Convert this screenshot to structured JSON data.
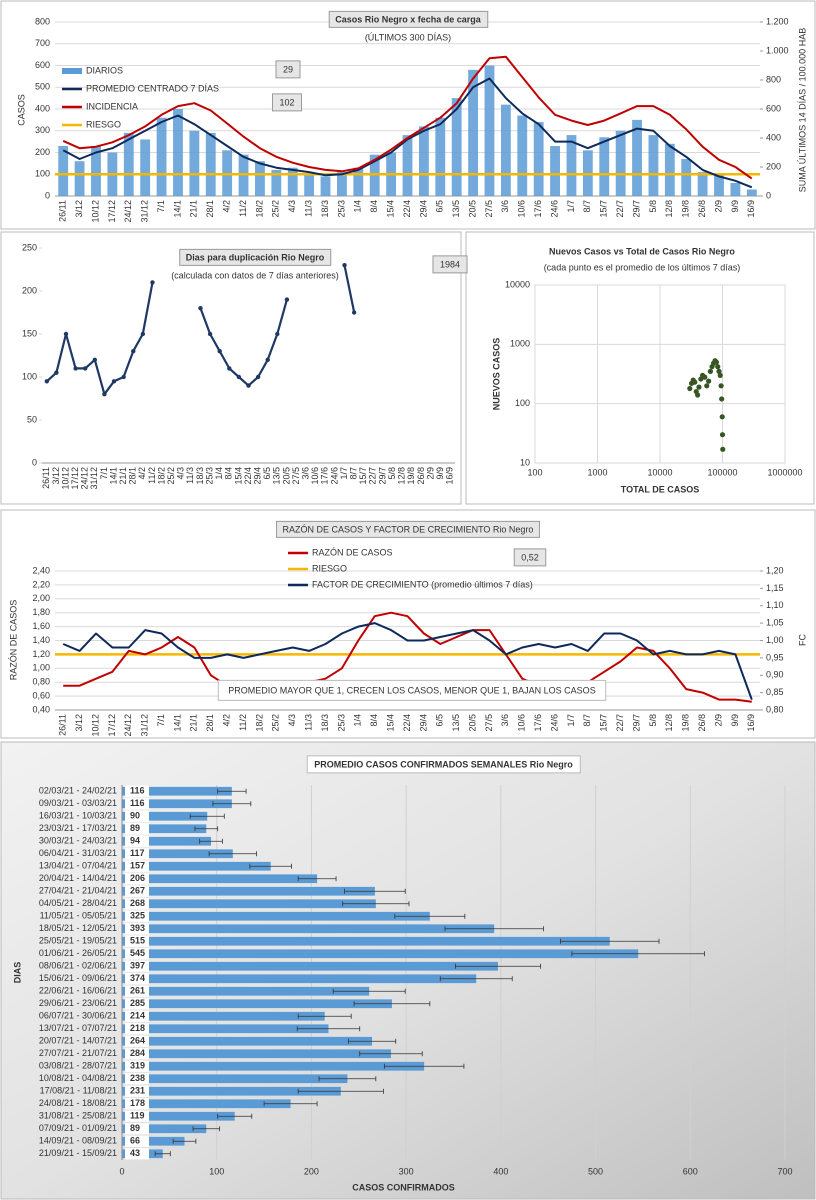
{
  "chart_data": [
    {
      "type": "bar",
      "title": "Casos Rio Negro x fecha de carga",
      "subtitle": "(ÚLTIMOS 300 DÍAS)",
      "ylabel": "CASOS",
      "y2label": "SUMA ÚLTIMOS 14 DÍAS / 100.000 HAB",
      "grid": true,
      "categories": [
        "26/11",
        "3/12",
        "10/12",
        "17/12",
        "24/12",
        "31/12",
        "7/1",
        "14/1",
        "21/1",
        "28/1",
        "4/2",
        "11/2",
        "18/2",
        "25/2",
        "4/3",
        "11/3",
        "18/3",
        "25/3",
        "1/4",
        "8/4",
        "15/4",
        "22/4",
        "29/4",
        "6/5",
        "13/5",
        "20/5",
        "27/5",
        "3/6",
        "10/6",
        "17/6",
        "24/6",
        "1/7",
        "8/7",
        "15/7",
        "22/7",
        "29/7",
        "5/8",
        "12/8",
        "19/8",
        "26/8",
        "2/9",
        "9/9",
        "16/9"
      ],
      "series": [
        {
          "name": "DIARIOS",
          "type": "bar",
          "color": "#5b9bd5",
          "values": [
            230,
            160,
            230,
            200,
            290,
            260,
            360,
            400,
            300,
            290,
            210,
            190,
            160,
            120,
            130,
            100,
            90,
            110,
            130,
            190,
            200,
            280,
            320,
            360,
            450,
            580,
            600,
            420,
            370,
            340,
            230,
            280,
            210,
            270,
            300,
            350,
            280,
            240,
            170,
            110,
            100,
            60,
            30
          ]
        },
        {
          "name": "PROMEDIO CENTRADO 7 DÍAS",
          "type": "line",
          "color": "#0e2a5c",
          "values": [
            210,
            170,
            200,
            220,
            260,
            300,
            340,
            370,
            330,
            280,
            230,
            180,
            150,
            130,
            120,
            110,
            95,
            100,
            120,
            160,
            200,
            260,
            300,
            330,
            400,
            500,
            540,
            450,
            380,
            330,
            250,
            250,
            220,
            250,
            280,
            310,
            300,
            230,
            180,
            120,
            90,
            70,
            40
          ]
        },
        {
          "name": "INCIDENCIA",
          "type": "line",
          "axis": "y2",
          "color": "#c00000",
          "values": [
            380,
            330,
            340,
            370,
            420,
            480,
            560,
            620,
            640,
            590,
            500,
            410,
            330,
            270,
            230,
            200,
            180,
            170,
            190,
            250,
            320,
            400,
            470,
            540,
            640,
            810,
            950,
            960,
            820,
            680,
            560,
            520,
            490,
            520,
            570,
            620,
            620,
            560,
            460,
            340,
            250,
            200,
            120
          ]
        }
      ],
      "reference_lines": [
        {
          "name": "RIESGO",
          "value": 100,
          "color": "#f5b800"
        }
      ],
      "annotations": [
        "29",
        "102"
      ],
      "ylim": [
        0,
        800
      ],
      "yticks": [
        0,
        100,
        200,
        300,
        400,
        500,
        600,
        700,
        800
      ],
      "y2lim": [
        0,
        1200
      ],
      "y2ticks": [
        0,
        200,
        400,
        600,
        800,
        {
          "value": 1000,
          "label": "1.000"
        },
        {
          "value": 1200,
          "label": "1.200"
        }
      ]
    },
    {
      "type": "line",
      "title": "Dias para duplicación Rio Negro",
      "subtitle": "(calculada con datos de 7 días anteriores)",
      "grid": false,
      "categories": [
        "26/11",
        "3/12",
        "10/12",
        "17/12",
        "24/12",
        "31/12",
        "7/1",
        "14/1",
        "21/1",
        "28/1",
        "4/2",
        "11/2",
        "18/2",
        "25/2",
        "4/3",
        "11/3",
        "18/3",
        "25/3",
        "1/4",
        "8/4",
        "15/4",
        "22/4",
        "29/4",
        "6/5",
        "13/5",
        "20/5",
        "27/5",
        "3/6",
        "10/6",
        "17/6",
        "24/6",
        "1/7",
        "8/7",
        "15/7",
        "22/7",
        "29/7",
        "5/8",
        "12/8",
        "19/8",
        "26/8",
        "2/9",
        "9/9",
        "16/9"
      ],
      "series": [
        {
          "name": "DIAS",
          "type": "line",
          "color": "#1f3864",
          "values": [
            95,
            105,
            150,
            110,
            110,
            120,
            80,
            95,
            100,
            130,
            150,
            210,
            null,
            null,
            null,
            null,
            180,
            150,
            130,
            110,
            100,
            90,
            100,
            120,
            150,
            190,
            null,
            null,
            null,
            null,
            null,
            230,
            175,
            null,
            null,
            null,
            null,
            null,
            null,
            null,
            null,
            null,
            null
          ]
        }
      ],
      "annotations": [
        "1984"
      ],
      "ylim": [
        0,
        250
      ],
      "yticks": [
        0,
        50,
        100,
        150,
        200,
        250
      ]
    },
    {
      "type": "scatter",
      "title": "Nuevos Casos vs Total de Casos Rio Negro",
      "subtitle": "(cada punto es el promedio de los últimos 7 días)",
      "xlabel": "TOTAL DE CASOS",
      "ylabel": "NUEVOS CASOS",
      "grid": true,
      "log_scale": true,
      "color": "#375623",
      "x": [
        30000,
        32000,
        34000,
        36000,
        38000,
        40000,
        42000,
        45000,
        48000,
        52000,
        56000,
        60000,
        64000,
        68000,
        72000,
        76000,
        80000,
        84000,
        88000,
        92000,
        95000,
        97000,
        99000,
        100000,
        101000
      ],
      "y": [
        180,
        220,
        250,
        230,
        160,
        140,
        190,
        260,
        300,
        280,
        200,
        240,
        350,
        420,
        480,
        530,
        500,
        420,
        350,
        300,
        200,
        120,
        60,
        30,
        17
      ],
      "xlim": [
        100,
        1000000
      ],
      "xticks": [
        100,
        1000,
        10000,
        100000,
        1000000
      ],
      "ylim": [
        10,
        10000
      ],
      "yticks": [
        10,
        100,
        1000,
        10000
      ]
    },
    {
      "type": "line",
      "title": "RAZÓN DE CASOS Y FACTOR DE CRECIMIENTO Rio Negro",
      "ylabel": "RAZÓN DE CASOS",
      "y2label": "FC",
      "grid": true,
      "note": "PROMEDIO MAYOR QUE 1, CRECEN LOS CASOS, MENOR QUE 1, BAJAN LOS CASOS",
      "annotations": [
        "0,52"
      ],
      "categories": [
        "26/11",
        "3/12",
        "10/12",
        "17/12",
        "24/12",
        "31/12",
        "7/1",
        "14/1",
        "21/1",
        "28/1",
        "4/2",
        "11/2",
        "18/2",
        "25/2",
        "4/3",
        "11/3",
        "18/3",
        "25/3",
        "1/4",
        "8/4",
        "15/4",
        "22/4",
        "29/4",
        "6/5",
        "13/5",
        "20/5",
        "27/5",
        "3/6",
        "10/6",
        "17/6",
        "24/6",
        "1/7",
        "8/7",
        "15/7",
        "22/7",
        "29/7",
        "5/8",
        "12/8",
        "19/8",
        "26/8",
        "2/9",
        "9/9",
        "16/9"
      ],
      "series": [
        {
          "name": "RAZÓN DE CASOS",
          "type": "line",
          "color": "#c00000",
          "values": [
            0.75,
            0.75,
            0.85,
            0.95,
            1.25,
            1.2,
            1.3,
            1.45,
            1.3,
            0.9,
            0.75,
            0.65,
            0.6,
            0.65,
            0.75,
            0.8,
            0.85,
            1.0,
            1.4,
            1.75,
            1.8,
            1.75,
            1.5,
            1.35,
            1.45,
            1.55,
            1.55,
            1.2,
            0.85,
            0.75,
            0.75,
            0.8,
            0.8,
            0.95,
            1.1,
            1.3,
            1.25,
            1.0,
            0.7,
            0.65,
            0.55,
            0.55,
            0.52
          ]
        },
        {
          "name": "FACTOR DE CRECIMIENTO (promedio últimos 7 días)",
          "type": "line",
          "axis": "y2",
          "color": "#0e2a5c",
          "values": [
            0.99,
            0.97,
            1.02,
            0.98,
            0.98,
            1.03,
            1.02,
            0.98,
            0.95,
            0.95,
            0.96,
            0.95,
            0.96,
            0.97,
            0.98,
            0.97,
            0.99,
            1.02,
            1.04,
            1.05,
            1.03,
            1.0,
            1.0,
            1.01,
            1.02,
            1.03,
            1.0,
            0.96,
            0.98,
            0.99,
            0.98,
            0.99,
            0.97,
            1.02,
            1.02,
            1.0,
            0.96,
            0.97,
            0.96,
            0.96,
            0.97,
            0.96,
            0.83
          ]
        }
      ],
      "reference_lines": [
        {
          "name": "RIESGO",
          "value": 1.2,
          "color": "#f5b800"
        }
      ],
      "ylim": [
        0.4,
        2.4
      ],
      "yticks": [
        {
          "value": 0.4,
          "label": "0,40"
        },
        {
          "value": 0.6,
          "label": "0,60"
        },
        {
          "value": 0.8,
          "label": "0,80"
        },
        {
          "value": 1.0,
          "label": "1,00"
        },
        {
          "value": 1.2,
          "label": "1,20"
        },
        {
          "value": 1.4,
          "label": "1,40"
        },
        {
          "value": 1.6,
          "label": "1,60"
        },
        {
          "value": 1.8,
          "label": "1,80"
        },
        {
          "value": 2.0,
          "label": "2,00"
        },
        {
          "value": 2.2,
          "label": "2,20"
        },
        {
          "value": 2.4,
          "label": "2,40"
        }
      ],
      "y2lim": [
        0.8,
        1.2
      ],
      "y2ticks": [
        {
          "value": 0.8,
          "label": "0,80"
        },
        {
          "value": 0.85,
          "label": "0,85"
        },
        {
          "value": 0.9,
          "label": "0,90"
        },
        {
          "value": 0.95,
          "label": "0,95"
        },
        {
          "value": 1.0,
          "label": "1,00"
        },
        {
          "value": 1.05,
          "label": "1,05"
        },
        {
          "value": 1.1,
          "label": "1,10"
        },
        {
          "value": 1.15,
          "label": "1,15"
        },
        {
          "value": 1.2,
          "label": "1,20"
        }
      ]
    },
    {
      "type": "hbar",
      "title": "PROMEDIO CASOS CONFIRMADOS SEMANALES Rio Negro",
      "xlabel": "CASOS CONFIRMADOS",
      "ylabel": "DIAS",
      "grid": true,
      "color": "#5b9bd5",
      "categories": [
        "02/03/21 - 24/02/21",
        "09/03/21 - 03/03/21",
        "16/03/21 - 10/03/21",
        "23/03/21 - 17/03/21",
        "30/03/21 - 24/03/21",
        "06/04/21 - 31/03/21",
        "13/04/21 - 07/04/21",
        "20/04/21 - 14/04/21",
        "27/04/21 - 21/04/21",
        "04/05/21 - 28/04/21",
        "11/05/21 - 05/05/21",
        "18/05/21 - 12/05/21",
        "25/05/21 - 19/05/21",
        "01/06/21 - 26/05/21",
        "08/06/21 - 02/06/21",
        "15/06/21 - 09/06/21",
        "22/06/21 - 16/06/21",
        "29/06/21 - 23/06/21",
        "06/07/21 - 30/06/21",
        "13/07/21 - 07/07/21",
        "20/07/21 - 14/07/21",
        "27/07/21 - 21/07/21",
        "03/08/21 - 28/07/21",
        "10/08/21 - 04/08/21",
        "17/08/21 - 11/08/21",
        "24/08/21 - 18/08/21",
        "31/08/21 - 25/08/21",
        "07/09/21 - 01/09/21",
        "14/09/21 - 08/09/21",
        "21/09/21 - 15/09/21"
      ],
      "values": [
        116,
        116,
        90,
        89,
        94,
        117,
        157,
        206,
        267,
        268,
        325,
        393,
        515,
        545,
        397,
        374,
        261,
        285,
        214,
        218,
        264,
        284,
        319,
        238,
        231,
        178,
        119,
        89,
        66,
        43
      ],
      "errors": [
        15,
        20,
        18,
        12,
        12,
        25,
        22,
        20,
        32,
        35,
        37,
        52,
        52,
        70,
        45,
        38,
        38,
        40,
        28,
        33,
        25,
        33,
        42,
        30,
        45,
        28,
        18,
        14,
        12,
        8
      ],
      "xlim": [
        0,
        700
      ],
      "xticks": [
        0,
        100,
        200,
        300,
        400,
        500,
        600,
        700
      ]
    }
  ]
}
